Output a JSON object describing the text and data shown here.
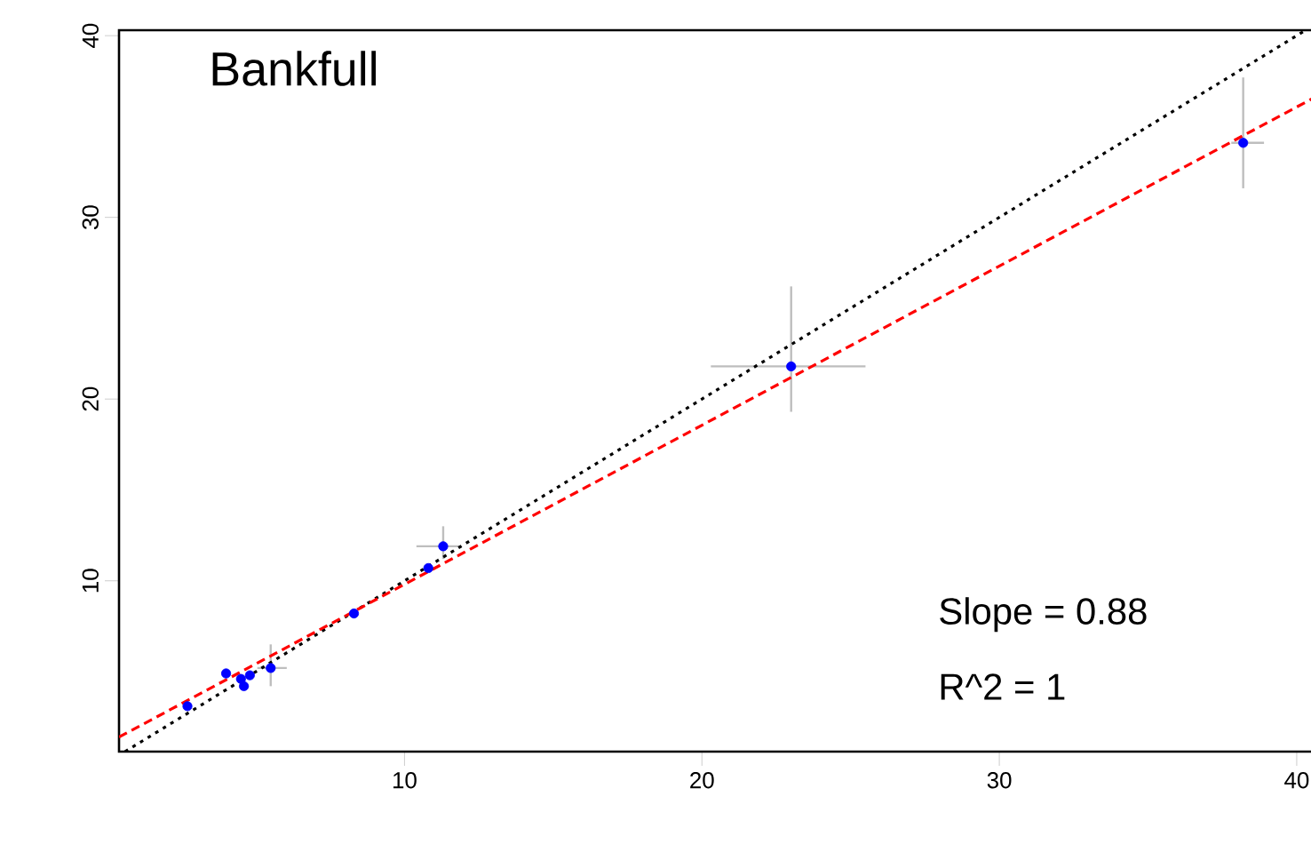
{
  "chart_data": {
    "type": "scatter",
    "title": "Bankfull",
    "annotations": [
      "Slope = 0.88",
      "R^2 = 1"
    ],
    "xlim": [
      0.4,
      40.6
    ],
    "ylim": [
      0.6,
      40.3
    ],
    "xticks": [
      10,
      20,
      30,
      40
    ],
    "yticks": [
      10,
      20,
      30,
      40
    ],
    "grid": false,
    "series": [
      {
        "color": "#0000ff",
        "marker": "circle",
        "x": [
          2.7,
          4.0,
          4.5,
          4.8,
          4.6,
          5.5,
          8.3,
          10.8,
          11.3,
          23.0,
          38.2
        ],
        "values": [
          3.1,
          4.9,
          4.6,
          4.8,
          4.2,
          5.2,
          8.2,
          10.7,
          11.9,
          21.8,
          34.1
        ],
        "errors": [
          null,
          null,
          null,
          null,
          null,
          [
            4.2,
            6.5
          ],
          null,
          null,
          [
            11.2,
            13.0
          ],
          [
            19.3,
            26.2
          ],
          [
            31.6,
            37.7
          ]
        ],
        "xerrors": [
          null,
          null,
          null,
          null,
          null,
          [
            5.05,
            6.04
          ],
          null,
          null,
          [
            10.4,
            11.9
          ],
          [
            20.3,
            25.5
          ],
          [
            37.8,
            38.9
          ]
        ]
      },
      {
        "type": "line",
        "color": "#000000",
        "line_style": "dotted",
        "marker": "none",
        "x": [
          0.6,
          40.3
        ],
        "values": [
          0.6,
          40.3
        ]
      },
      {
        "type": "line",
        "color": "#ff0000",
        "line_style": "dashed",
        "marker": "none",
        "x": [
          0.4,
          40.6
        ],
        "values": [
          1.4,
          36.6
        ]
      }
    ]
  }
}
